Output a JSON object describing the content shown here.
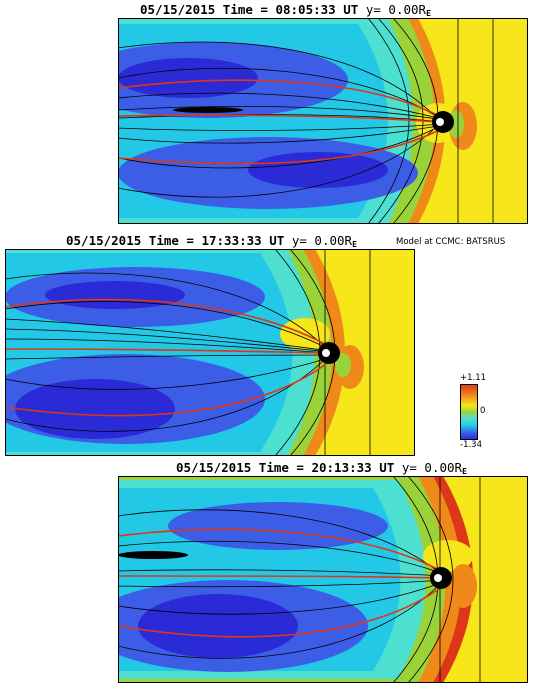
{
  "panels": [
    {
      "date": "05/15/2015",
      "time_word": "Time",
      "time": "08:05:33",
      "ut": "UT",
      "y_label": "y=",
      "y_value": "0.00R",
      "y_sub": "E"
    },
    {
      "date": "05/15/2015",
      "time_word": "Time",
      "time": "17:33:33",
      "ut": "UT",
      "y_label": "y=",
      "y_value": "0.00R",
      "y_sub": "E"
    },
    {
      "date": "05/15/2015",
      "time_word": "Time",
      "time": "20:13:33",
      "ut": "UT",
      "y_label": "y=",
      "y_value": "0.00R",
      "y_sub": "E"
    }
  ],
  "credit": "Model at CCMC: BATSRUS",
  "colorbar": {
    "max": "+1.11",
    "mid": "0",
    "min": "-1.34"
  },
  "colors": {
    "deep_blue": "#2a2ad6",
    "blue": "#3c5ee6",
    "cyan": "#22c8e6",
    "aqua": "#4de0d0",
    "green": "#9ad23a",
    "yellow": "#f6e61a",
    "orange": "#ef8a1a",
    "red": "#de3618"
  }
}
